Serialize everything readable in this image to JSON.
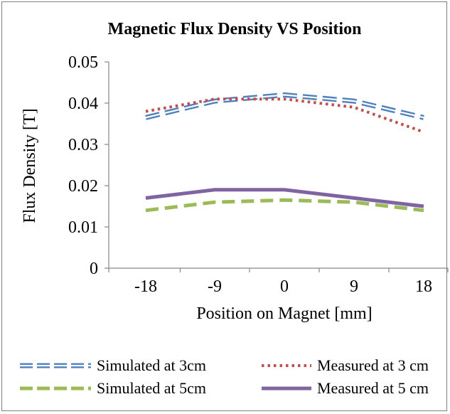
{
  "chart_data": {
    "type": "line",
    "title": "Magnetic Flux Density VS Position",
    "xlabel": "Position on Magnet [mm]",
    "ylabel": "Flux Density [T]",
    "categories": [
      "-18",
      "-9",
      "0",
      "9",
      "18"
    ],
    "ylim": [
      0,
      0.05
    ],
    "yticks": [
      "0",
      "0.01",
      "0.02",
      "0.03",
      "0.04",
      "0.05"
    ],
    "grid": false,
    "legend_position": "bottom",
    "series": [
      {
        "name": "Simulated at 3cm",
        "values": [
          0.0365,
          0.0405,
          0.042,
          0.0405,
          0.0365
        ],
        "color": "#4f81bd",
        "style": "double-dash"
      },
      {
        "name": "Measured at 3 cm",
        "values": [
          0.038,
          0.041,
          0.041,
          0.039,
          0.033
        ],
        "color": "#c0504d",
        "style": "dotted"
      },
      {
        "name": "Simulated at 5cm",
        "values": [
          0.014,
          0.016,
          0.0165,
          0.016,
          0.014
        ],
        "color": "#9bbb59",
        "style": "dashed"
      },
      {
        "name": "Measured at 5 cm",
        "values": [
          0.017,
          0.019,
          0.019,
          0.017,
          0.015
        ],
        "color": "#8064a2",
        "style": "solid"
      }
    ]
  }
}
